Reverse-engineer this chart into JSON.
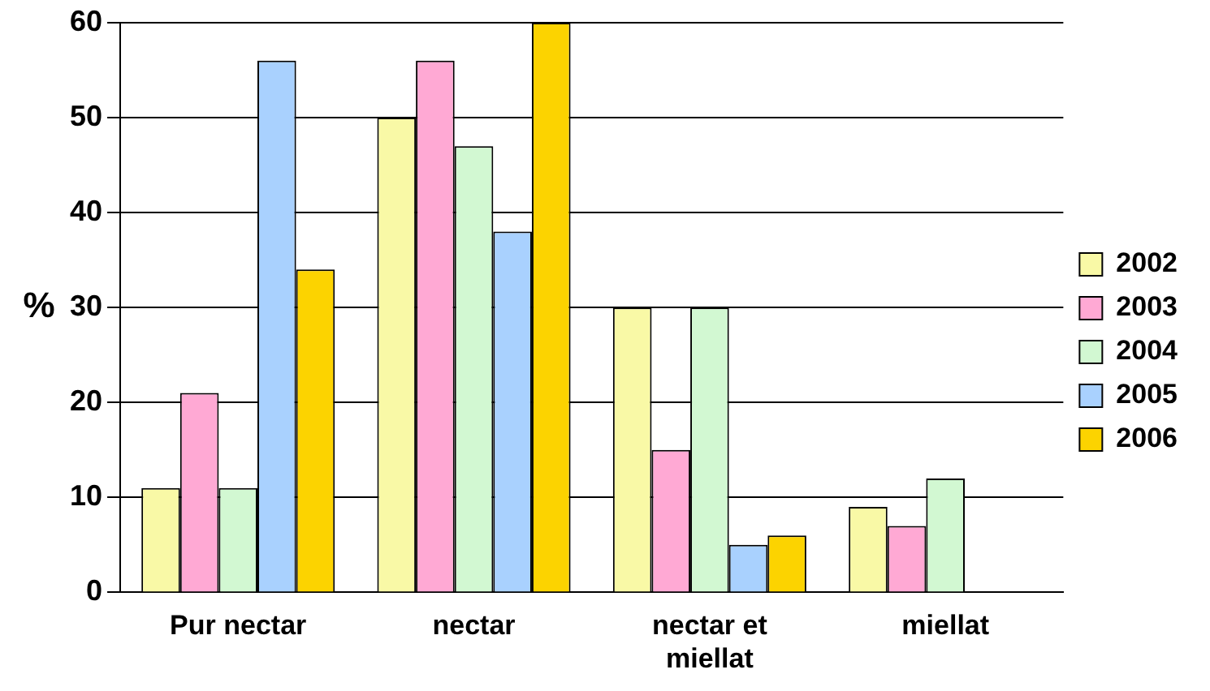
{
  "chart_data": {
    "type": "bar",
    "ylabel": "%",
    "categories": [
      "Pur nectar",
      "nectar",
      "nectar et miellat",
      "miellat"
    ],
    "series": [
      {
        "name": "2002",
        "color": "#f9f9a6",
        "values": [
          11,
          50,
          30,
          9
        ]
      },
      {
        "name": "2003",
        "color": "#ffa9d4",
        "values": [
          21,
          56,
          15,
          7
        ]
      },
      {
        "name": "2004",
        "color": "#d2f8d2",
        "values": [
          11,
          47,
          30,
          12
        ]
      },
      {
        "name": "2005",
        "color": "#a9d1fe",
        "values": [
          56,
          38,
          5,
          0
        ]
      },
      {
        "name": "2006",
        "color": "#fcd300",
        "values": [
          34,
          60,
          6,
          0
        ]
      }
    ],
    "ylim": [
      0,
      60
    ],
    "yticks": [
      0,
      10,
      20,
      30,
      40,
      50,
      60
    ],
    "grid": "y",
    "legend": "right"
  }
}
